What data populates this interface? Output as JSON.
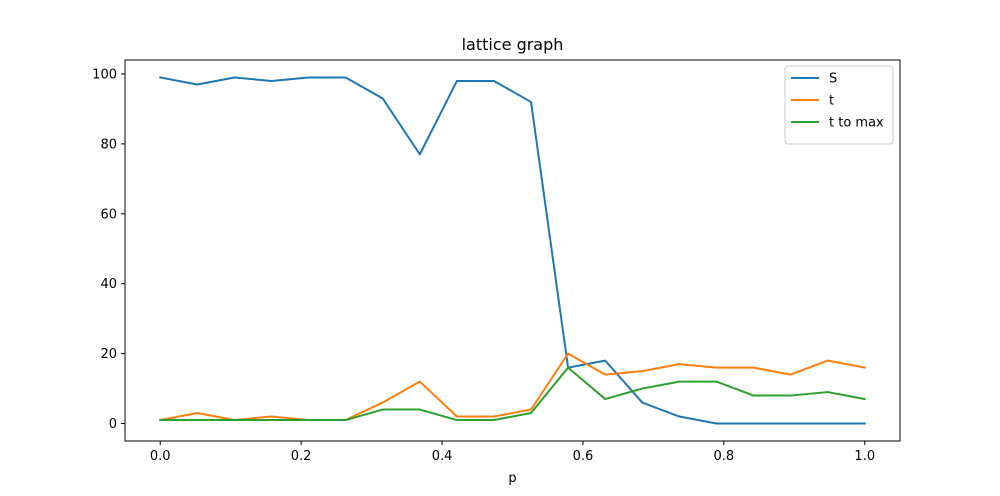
{
  "chart_data": {
    "type": "line",
    "title": "lattice graph",
    "xlabel": "p",
    "ylabel": "",
    "xlim": [
      -0.05,
      1.05
    ],
    "ylim": [
      -5,
      104
    ],
    "x_ticks": [
      0.0,
      0.2,
      0.4,
      0.6,
      0.8,
      1.0
    ],
    "x_tick_labels": [
      "0.0",
      "0.2",
      "0.4",
      "0.6",
      "0.8",
      "1.0"
    ],
    "y_ticks": [
      0,
      20,
      40,
      60,
      80,
      100
    ],
    "y_tick_labels": [
      "0",
      "20",
      "40",
      "60",
      "80",
      "100"
    ],
    "grid": false,
    "legend_position": "upper right",
    "x": [
      0.0,
      0.0526,
      0.1053,
      0.1579,
      0.2105,
      0.2632,
      0.3158,
      0.3684,
      0.4211,
      0.4737,
      0.5263,
      0.5789,
      0.6316,
      0.6842,
      0.7368,
      0.7895,
      0.8421,
      0.8947,
      0.9474,
      1.0
    ],
    "series": [
      {
        "name": "S",
        "color": "#1f77b4",
        "values": [
          99,
          97,
          99,
          98,
          99,
          99,
          93,
          77,
          98,
          98,
          92,
          16,
          18,
          6,
          2,
          0,
          0,
          0,
          0,
          0
        ]
      },
      {
        "name": "t",
        "color": "#ff7f0e",
        "values": [
          1,
          3,
          1,
          2,
          1,
          1,
          6,
          12,
          2,
          2,
          4,
          20,
          14,
          15,
          17,
          16,
          16,
          14,
          18,
          16
        ]
      },
      {
        "name": "t to max",
        "color": "#2ca02c",
        "values": [
          1,
          1,
          1,
          1,
          1,
          1,
          4,
          4,
          1,
          1,
          3,
          16,
          7,
          10,
          12,
          12,
          8,
          8,
          9,
          7
        ]
      }
    ]
  }
}
